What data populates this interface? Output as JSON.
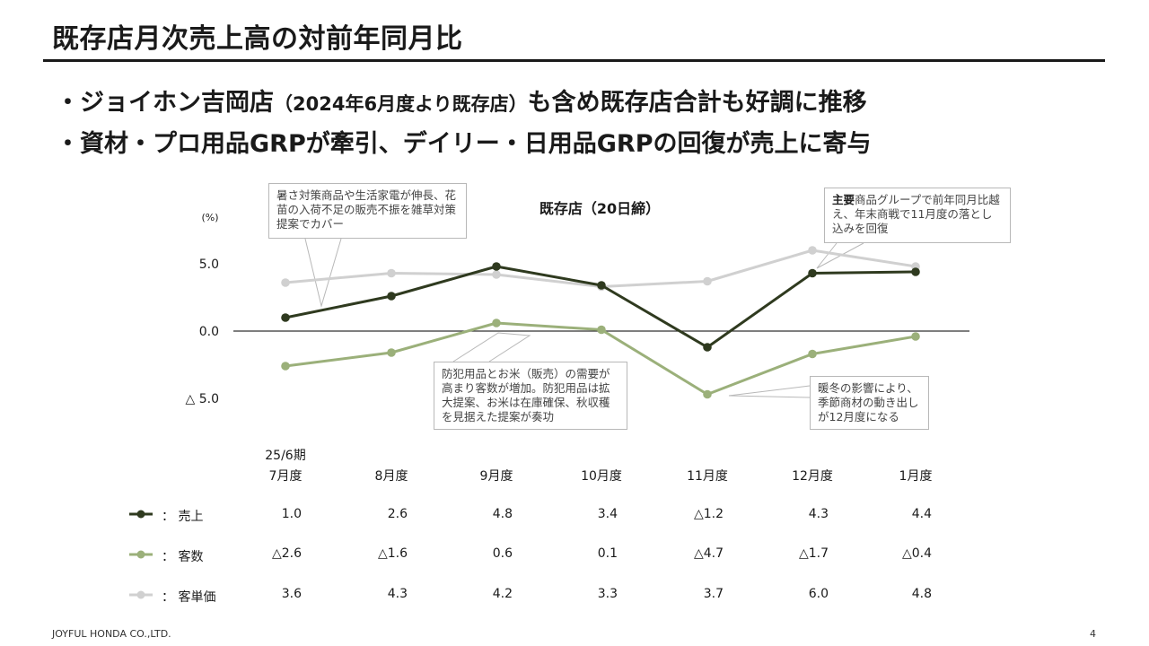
{
  "title": "既存店月次売上高の対前年同月比",
  "bullets": [
    {
      "main": "・ジョイホン吉岡店",
      "small": "（2024年6月度より既存店）",
      "rest": "も含め既存店合計も好調に推移"
    },
    {
      "main": "・資材・プロ用品GRPが牽引、デイリー・日用品GRPの回復が売上に寄与"
    }
  ],
  "callouts": {
    "top_left": "暑さ対策商品や生活家電が伸長、花苗の入荷不足の販売不振を雑草対策提案でカバー",
    "top_right_bold": "主要",
    "top_right": "商品グループで前年同月比越え、年末商戦で11月度の落とし込みを回復",
    "mid": "防犯用品とお米（販売）の需要が高まり客数が増加。防犯用品は拡大提案、お米は在庫確保、秋収穫を見据えた提案が奏功",
    "right": "暖冬の影響により、季節商材の動き出しが12月度になる"
  },
  "chart_data": {
    "type": "line",
    "title": "既存店（20日締）",
    "unit_label": "(%)",
    "period_label": "25/6期",
    "categories": [
      "7月度",
      "8月度",
      "9月度",
      "10月度",
      "11月度",
      "12月度",
      "1月度"
    ],
    "y_ticks": [
      "5.0",
      "0.0",
      "△ 5.0"
    ],
    "ylim": [
      -6.5,
      6.5
    ],
    "series": [
      {
        "name": "売上",
        "color": "#2f3a1f",
        "values": [
          1.0,
          2.6,
          4.8,
          3.4,
          -1.2,
          4.3,
          4.4
        ],
        "labels": [
          "1.0",
          "2.6",
          "4.8",
          "3.4",
          "△1.2",
          "4.3",
          "4.4"
        ]
      },
      {
        "name": "客数",
        "color": "#9bb07a",
        "values": [
          -2.6,
          -1.6,
          0.6,
          0.1,
          -4.7,
          -1.7,
          -0.4
        ],
        "labels": [
          "△2.6",
          "△1.6",
          "0.6",
          "0.1",
          "△4.7",
          "△1.7",
          "△0.4"
        ]
      },
      {
        "name": "客単価",
        "color": "#d0d0d0",
        "values": [
          3.6,
          4.3,
          4.2,
          3.3,
          3.7,
          6.0,
          4.8
        ],
        "labels": [
          "3.6",
          "4.3",
          "4.2",
          "3.3",
          "3.7",
          "6.0",
          "4.8"
        ]
      }
    ]
  },
  "legend_separator": "：",
  "footer": {
    "company": "JOYFUL HONDA CO.,LTD.",
    "page": "4"
  }
}
